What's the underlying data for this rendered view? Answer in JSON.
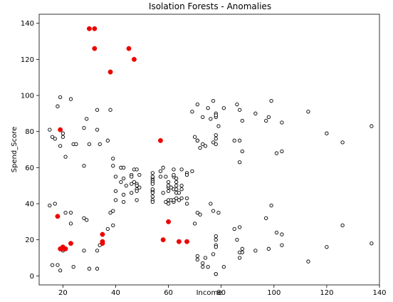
{
  "chart_data": {
    "type": "scatter",
    "title": "Isolation Forests - Anomalies",
    "xlabel": "Income",
    "ylabel": "Spend_Score",
    "xlim": [
      11,
      140
    ],
    "ylim": [
      -5,
      145
    ],
    "xticks": [
      20,
      40,
      60,
      80,
      100,
      120,
      140
    ],
    "yticks": [
      0,
      20,
      40,
      60,
      80,
      100,
      120,
      140
    ],
    "grid": false,
    "legend": "none",
    "colors": {
      "normal_edge": "#000000",
      "normal_fill": "#ffffff",
      "anomaly": "#ee0000"
    },
    "series": [
      {
        "role": "normal",
        "points": [
          [
            15,
            39
          ],
          [
            15,
            81
          ],
          [
            16,
            6
          ],
          [
            16,
            77
          ],
          [
            17,
            40
          ],
          [
            17,
            76
          ],
          [
            18,
            6
          ],
          [
            18,
            94
          ],
          [
            19,
            3
          ],
          [
            19,
            72
          ],
          [
            19,
            99
          ],
          [
            20,
            14
          ],
          [
            20,
            77
          ],
          [
            20,
            79
          ],
          [
            21,
            35
          ],
          [
            21,
            66
          ],
          [
            23,
            29
          ],
          [
            23,
            98
          ],
          [
            23,
            35
          ],
          [
            24,
            73
          ],
          [
            24,
            5
          ],
          [
            25,
            73
          ],
          [
            28,
            14
          ],
          [
            28,
            32
          ],
          [
            28,
            61
          ],
          [
            28,
            82
          ],
          [
            29,
            31
          ],
          [
            29,
            87
          ],
          [
            30,
            4
          ],
          [
            30,
            73
          ],
          [
            33,
            4
          ],
          [
            33,
            92
          ],
          [
            33,
            14
          ],
          [
            33,
            81
          ],
          [
            34,
            17
          ],
          [
            34,
            73
          ],
          [
            37,
            26
          ],
          [
            37,
            75
          ],
          [
            38,
            35
          ],
          [
            38,
            92
          ],
          [
            39,
            36
          ],
          [
            39,
            28
          ],
          [
            39,
            61
          ],
          [
            39,
            65
          ],
          [
            40,
            55
          ],
          [
            40,
            47
          ],
          [
            40,
            42
          ],
          [
            42,
            52
          ],
          [
            42,
            60
          ],
          [
            43,
            54
          ],
          [
            43,
            60
          ],
          [
            43,
            45
          ],
          [
            43,
            41
          ],
          [
            44,
            50
          ],
          [
            46,
            51
          ],
          [
            46,
            46
          ],
          [
            46,
            56
          ],
          [
            46,
            55
          ],
          [
            47,
            52
          ],
          [
            47,
            59
          ],
          [
            48,
            51
          ],
          [
            48,
            59
          ],
          [
            48,
            50
          ],
          [
            48,
            48
          ],
          [
            48,
            47
          ],
          [
            48,
            42
          ],
          [
            49,
            49
          ],
          [
            49,
            56
          ],
          [
            54,
            47
          ],
          [
            54,
            54
          ],
          [
            54,
            53
          ],
          [
            54,
            48
          ],
          [
            54,
            52
          ],
          [
            54,
            42
          ],
          [
            54,
            51
          ],
          [
            54,
            55
          ],
          [
            54,
            41
          ],
          [
            54,
            44
          ],
          [
            54,
            57
          ],
          [
            54,
            46
          ],
          [
            57,
            58
          ],
          [
            57,
            55
          ],
          [
            58,
            60
          ],
          [
            58,
            46
          ],
          [
            59,
            55
          ],
          [
            59,
            41
          ],
          [
            60,
            49
          ],
          [
            60,
            40
          ],
          [
            60,
            42
          ],
          [
            60,
            52
          ],
          [
            60,
            47
          ],
          [
            60,
            50
          ],
          [
            61,
            42
          ],
          [
            61,
            49
          ],
          [
            62,
            41
          ],
          [
            62,
            48
          ],
          [
            62,
            59
          ],
          [
            62,
            55
          ],
          [
            62,
            56
          ],
          [
            62,
            42
          ],
          [
            63,
            50
          ],
          [
            63,
            46
          ],
          [
            63,
            43
          ],
          [
            63,
            48
          ],
          [
            63,
            52
          ],
          [
            63,
            54
          ],
          [
            64,
            42
          ],
          [
            64,
            46
          ],
          [
            65,
            48
          ],
          [
            65,
            50
          ],
          [
            65,
            43
          ],
          [
            65,
            59
          ],
          [
            67,
            43
          ],
          [
            67,
            57
          ],
          [
            67,
            56
          ],
          [
            67,
            40
          ],
          [
            69,
            58
          ],
          [
            69,
            91
          ],
          [
            70,
            29
          ],
          [
            70,
            77
          ],
          [
            71,
            35
          ],
          [
            71,
            95
          ],
          [
            71,
            11
          ],
          [
            71,
            75
          ],
          [
            71,
            9
          ],
          [
            71,
            75
          ],
          [
            72,
            34
          ],
          [
            72,
            71
          ],
          [
            73,
            5
          ],
          [
            73,
            88
          ],
          [
            73,
            7
          ],
          [
            73,
            73
          ],
          [
            74,
            10
          ],
          [
            74,
            72
          ],
          [
            75,
            5
          ],
          [
            75,
            93
          ],
          [
            76,
            40
          ],
          [
            76,
            87
          ],
          [
            77,
            12
          ],
          [
            77,
            97
          ],
          [
            77,
            36
          ],
          [
            77,
            74
          ],
          [
            78,
            22
          ],
          [
            78,
            90
          ],
          [
            78,
            17
          ],
          [
            78,
            88
          ],
          [
            78,
            20
          ],
          [
            78,
            76
          ],
          [
            78,
            16
          ],
          [
            78,
            89
          ],
          [
            78,
            1
          ],
          [
            78,
            78
          ],
          [
            78,
            1
          ],
          [
            78,
            73
          ],
          [
            79,
            35
          ],
          [
            79,
            83
          ],
          [
            81,
            5
          ],
          [
            81,
            93
          ],
          [
            85,
            26
          ],
          [
            85,
            75
          ],
          [
            86,
            20
          ],
          [
            86,
            95
          ],
          [
            87,
            27
          ],
          [
            87,
            63
          ],
          [
            87,
            13
          ],
          [
            87,
            75
          ],
          [
            87,
            10
          ],
          [
            87,
            92
          ],
          [
            88,
            13
          ],
          [
            88,
            86
          ],
          [
            88,
            15
          ],
          [
            88,
            69
          ],
          [
            93,
            14
          ],
          [
            93,
            90
          ],
          [
            97,
            32
          ],
          [
            97,
            86
          ],
          [
            98,
            15
          ],
          [
            98,
            88
          ],
          [
            99,
            39
          ],
          [
            99,
            97
          ],
          [
            101,
            24
          ],
          [
            101,
            68
          ],
          [
            103,
            17
          ],
          [
            103,
            85
          ],
          [
            103,
            23
          ],
          [
            103,
            69
          ],
          [
            113,
            8
          ],
          [
            113,
            91
          ],
          [
            120,
            16
          ],
          [
            120,
            79
          ],
          [
            126,
            28
          ],
          [
            126,
            74
          ],
          [
            137,
            18
          ],
          [
            137,
            83
          ]
        ]
      },
      {
        "role": "anomaly",
        "points": [
          [
            30,
            137
          ],
          [
            32,
            137
          ],
          [
            32,
            126
          ],
          [
            38,
            113
          ],
          [
            45,
            126
          ],
          [
            47,
            120
          ],
          [
            19,
            81
          ],
          [
            18,
            33
          ],
          [
            19,
            15
          ],
          [
            20,
            16
          ],
          [
            20,
            15
          ],
          [
            21,
            15
          ],
          [
            23,
            18
          ],
          [
            35,
            23
          ],
          [
            35,
            19
          ],
          [
            35,
            18
          ],
          [
            57,
            75
          ],
          [
            58,
            20
          ],
          [
            60,
            30
          ],
          [
            64,
            19
          ],
          [
            67,
            19
          ]
        ]
      }
    ]
  }
}
